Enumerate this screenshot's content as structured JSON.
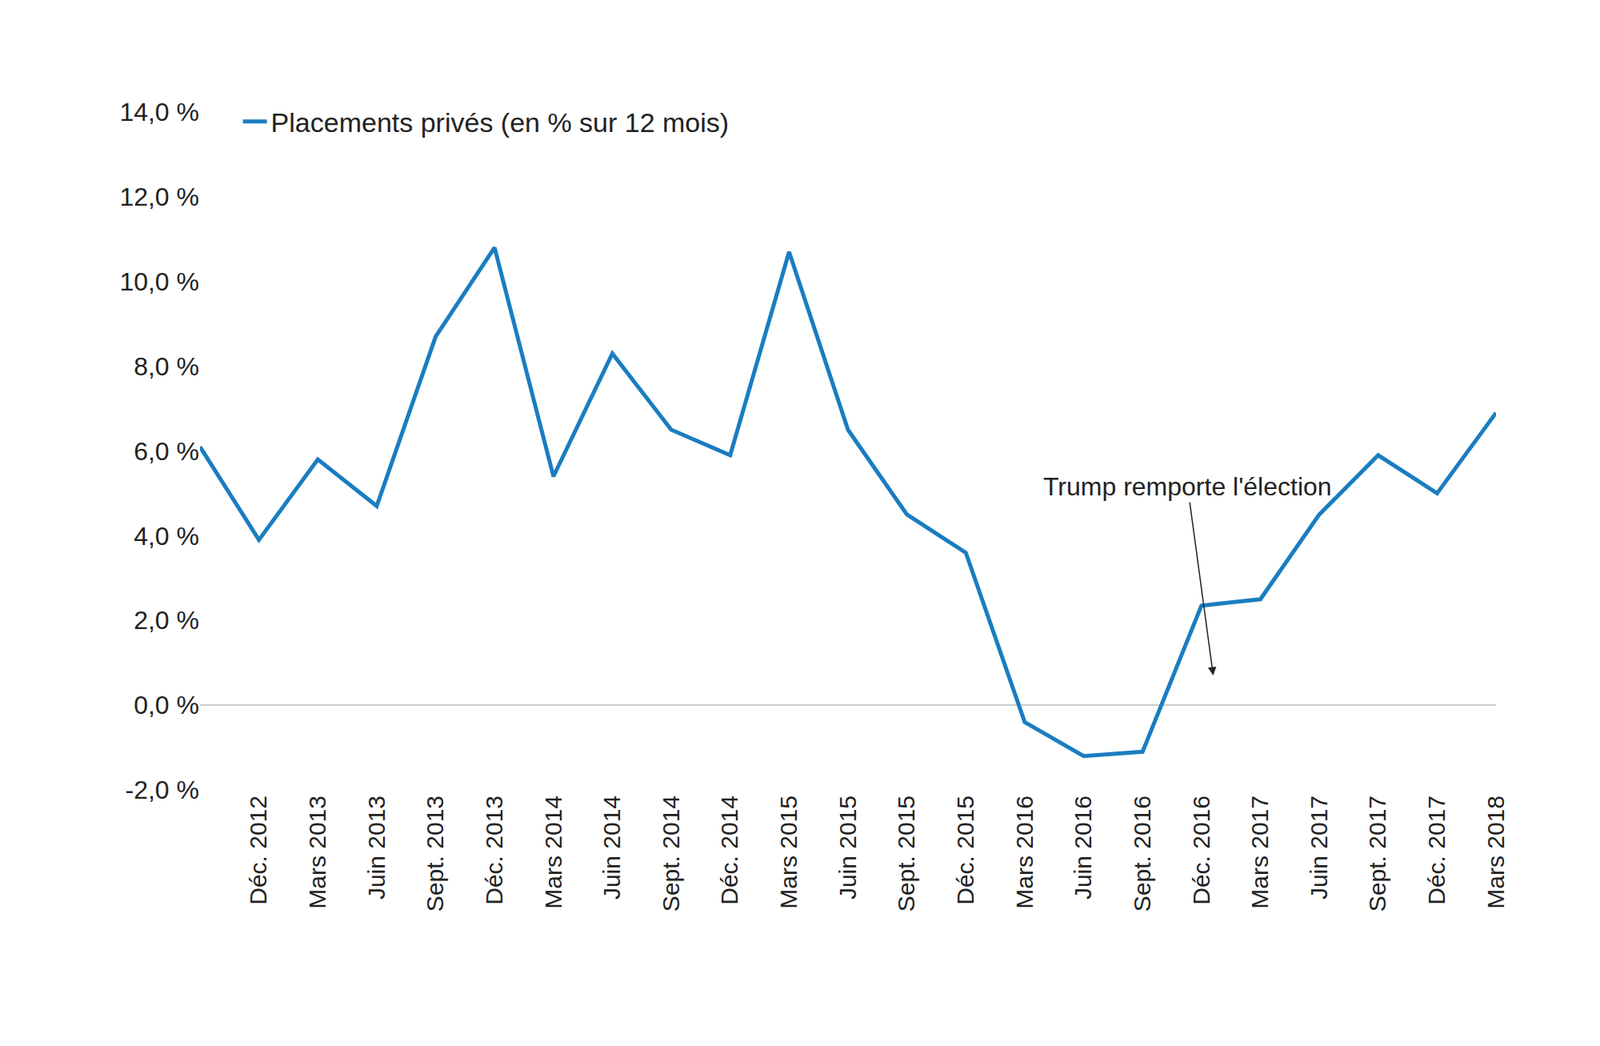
{
  "chart_data": {
    "type": "line",
    "categories": [
      null,
      "Déc. 2012",
      "Mars 2013",
      "Juin 2013",
      "Sept. 2013",
      "Déc. 2013",
      "Mars 2014",
      "Juin 2014",
      "Sept. 2014",
      "Déc. 2014",
      "Mars 2015",
      "Juin 2015",
      "Sept. 2015",
      "Déc. 2015",
      "Mars 2016",
      "Juin 2016",
      "Sept. 2016",
      "Déc. 2016",
      "Mars 2017",
      "Juin 2017",
      "Sept. 2017",
      "Déc. 2017",
      "Mars 2018"
    ],
    "series": [
      {
        "name": "Placements privés (en % sur 12 mois)",
        "color": "#1a7dc0",
        "values": [
          6.1,
          3.9,
          5.8,
          4.7,
          8.7,
          10.8,
          5.4,
          8.3,
          6.5,
          5.9,
          10.7,
          6.5,
          4.5,
          3.6,
          -0.4,
          -1.2,
          -1.1,
          2.35,
          2.5,
          4.5,
          5.9,
          5.0,
          6.9
        ]
      }
    ],
    "ylim": [
      -2,
      14
    ],
    "yticks": [
      {
        "value": -2,
        "label": "-2,0 %"
      },
      {
        "value": 0,
        "label": "0,0 %"
      },
      {
        "value": 2,
        "label": "2,0 %"
      },
      {
        "value": 4,
        "label": "4,0 %"
      },
      {
        "value": 6,
        "label": "6,0 %"
      },
      {
        "value": 8,
        "label": "8,0 %"
      },
      {
        "value": 10,
        "label": "10,0 %"
      },
      {
        "value": 12,
        "label": "12,0 %"
      },
      {
        "value": 14,
        "label": "14,0 %"
      }
    ],
    "grid": false,
    "legend": "top-left",
    "annotations": [
      {
        "text": "Trump remporte l'élection",
        "x": 17.2,
        "y": 0.7
      }
    ]
  }
}
